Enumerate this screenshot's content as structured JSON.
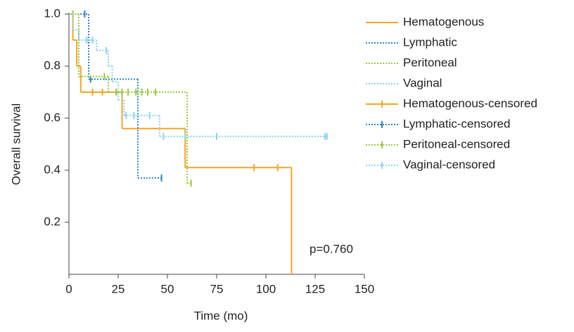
{
  "chart_data": {
    "type": "kaplan-meier",
    "xlabel": "Time (mo)",
    "ylabel": "Overall survival",
    "xlim": [
      0,
      150
    ],
    "xticks": [
      0,
      25,
      50,
      75,
      100,
      125,
      150
    ],
    "ylim": [
      0,
      1
    ],
    "yticks": [
      0.2,
      0.4,
      0.6,
      0.8,
      {
        "value": 1,
        "label": "1.0"
      }
    ],
    "annotation": "p=0.760",
    "legend": "upper right",
    "series": [
      {
        "name": "Hematogenous",
        "color": "#f5a623",
        "style": "solid",
        "x": [
          0,
          2,
          4,
          6,
          27,
          59,
          113
        ],
        "values": [
          1,
          0.9,
          0.8,
          0.7,
          0.56,
          0.41,
          0
        ],
        "censored": {
          "name": "Hematogenous-censored",
          "x": [
            12,
            17,
            24,
            94,
            106
          ],
          "values": [
            0.7,
            0.7,
            0.7,
            0.41,
            0.41
          ]
        }
      },
      {
        "name": "Lymphatic",
        "color": "#2a86c0",
        "style": "dotted",
        "x": [
          0,
          10,
          35
        ],
        "values": [
          1,
          0.75,
          0.37
        ],
        "censored": {
          "name": "Lymphatic-censored",
          "x": [
            8,
            11,
            47
          ],
          "values": [
            1,
            0.75,
            0.37
          ]
        }
      },
      {
        "name": "Peritoneal",
        "color": "#9cc83c",
        "style": "dotted",
        "x": [
          0,
          5,
          20,
          60
        ],
        "values": [
          1,
          0.76,
          0.7,
          0.35
        ],
        "censored": {
          "name": "Peritoneal-censored",
          "x": [
            2,
            18,
            24,
            27,
            30,
            34,
            37,
            40,
            44,
            62
          ],
          "values": [
            1,
            0.76,
            0.7,
            0.7,
            0.7,
            0.7,
            0.7,
            0.7,
            0.7,
            0.35
          ]
        }
      },
      {
        "name": "Vaginal",
        "color": "#8ad4f3",
        "style": "dotted",
        "x": [
          0,
          2,
          5,
          14,
          20,
          22,
          25,
          28,
          46
        ],
        "values": [
          1,
          0.94,
          0.9,
          0.86,
          0.8,
          0.74,
          0.67,
          0.61,
          0.53
        ],
        "censored": {
          "name": "Vaginal-censored",
          "x": [
            9,
            12,
            19,
            29,
            33,
            41,
            48,
            59,
            75,
            130,
            131
          ],
          "values": [
            0.9,
            0.9,
            0.86,
            0.61,
            0.61,
            0.61,
            0.53,
            0.53,
            0.53,
            0.53,
            0.53
          ]
        }
      }
    ]
  }
}
